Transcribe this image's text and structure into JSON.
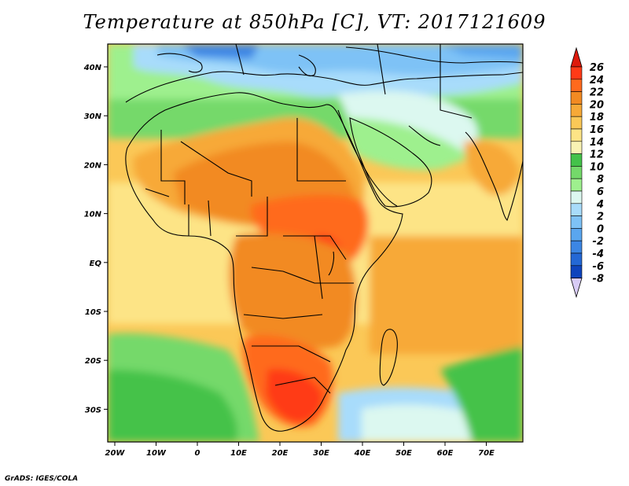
{
  "title": "Temperature at 850hPa [C], VT: 2017121609",
  "credit": "GrADS: IGES/COLA",
  "map": {
    "variable": "Temperature at 850hPa",
    "units": "C",
    "valid_time": "2017121609",
    "lon_ticks": [
      "20W",
      "10W",
      "0",
      "10E",
      "20E",
      "30E",
      "40E",
      "50E",
      "60E",
      "70E"
    ],
    "lat_ticks": [
      "40N",
      "30N",
      "20N",
      "10N",
      "EQ",
      "10S",
      "20S",
      "30S"
    ]
  },
  "colorbar": {
    "levels": [
      "26",
      "24",
      "22",
      "20",
      "18",
      "16",
      "14",
      "12",
      "10",
      "8",
      "6",
      "4",
      "2",
      "0",
      "-2",
      "-4",
      "-6",
      "-8"
    ],
    "colors": [
      "#ff3a17",
      "#ff6a1d",
      "#f28a22",
      "#f7a937",
      "#fbc857",
      "#fde486",
      "#f9f3b3",
      "#44c24a",
      "#74d96a",
      "#9ef08e",
      "#dcf8f0",
      "#a8dcfb",
      "#7ec2f6",
      "#5aa6ef",
      "#3c86e4",
      "#2468d5",
      "#0f44bd",
      "#071f8f"
    ],
    "arrow_top_color": "#dd1a0c",
    "arrow_bottom_color": "#d8ccf6"
  }
}
